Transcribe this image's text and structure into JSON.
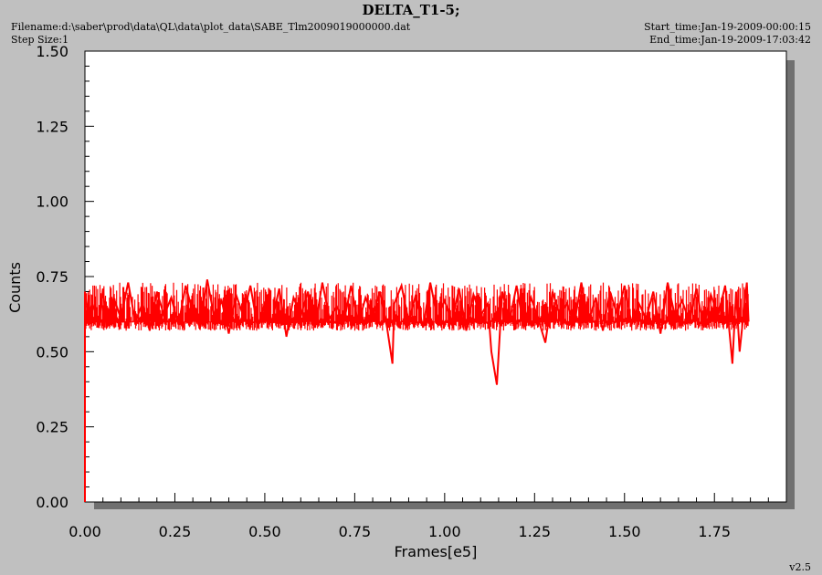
{
  "header": {
    "title": "DELTA_T1-5;",
    "filename": "Filename:d:\\saber\\prod\\data\\QL\\data\\plot_data\\SABE_Tlm2009019000000.dat",
    "step_size": "Step Size:1",
    "start_time": "Start_time:Jan-19-2009-00:00:15",
    "end_time": "End_time:Jan-19-2009-17:03:42",
    "version": "v2.5"
  },
  "colors": {
    "series": "#ff0000",
    "background": "#c0c0c0",
    "plot_bg": "#ffffff",
    "shadow": "#707070"
  },
  "chart_data": {
    "type": "line",
    "title": "DELTA_T1-5;",
    "xlabel": "Frames[e5]",
    "ylabel": "Counts",
    "xlim": [
      0.0,
      1.95
    ],
    "ylim": [
      0.0,
      1.5
    ],
    "xticks": [
      "0.00",
      "0.25",
      "0.50",
      "0.75",
      "1.00",
      "1.25",
      "1.50",
      "1.75"
    ],
    "yticks": [
      "0.00",
      "0.25",
      "0.50",
      "0.75",
      "1.00",
      "1.25",
      "1.50"
    ],
    "grid": false,
    "series": [
      {
        "color": "#ff0000",
        "x": [
          0.0,
          0.0,
          0.01,
          0.02,
          0.04,
          0.05,
          0.06,
          0.08,
          0.1,
          0.12,
          0.14,
          0.16,
          0.18,
          0.2,
          0.22,
          0.24,
          0.26,
          0.28,
          0.3,
          0.32,
          0.34,
          0.36,
          0.38,
          0.4,
          0.42,
          0.44,
          0.46,
          0.48,
          0.5,
          0.52,
          0.54,
          0.56,
          0.58,
          0.6,
          0.62,
          0.64,
          0.66,
          0.68,
          0.7,
          0.72,
          0.74,
          0.76,
          0.78,
          0.8,
          0.82,
          0.84,
          0.855,
          0.86,
          0.88,
          0.9,
          0.92,
          0.94,
          0.96,
          0.98,
          1.0,
          1.02,
          1.04,
          1.06,
          1.08,
          1.1,
          1.12,
          1.13,
          1.145,
          1.16,
          1.18,
          1.2,
          1.22,
          1.24,
          1.26,
          1.28,
          1.3,
          1.32,
          1.34,
          1.36,
          1.38,
          1.4,
          1.42,
          1.44,
          1.46,
          1.48,
          1.5,
          1.52,
          1.54,
          1.56,
          1.58,
          1.6,
          1.62,
          1.64,
          1.66,
          1.68,
          1.7,
          1.72,
          1.74,
          1.76,
          1.78,
          1.8,
          1.81,
          1.82,
          1.84,
          1.845
        ],
        "y": [
          0.0,
          0.7,
          0.62,
          0.66,
          0.6,
          0.71,
          0.58,
          0.68,
          0.61,
          0.73,
          0.6,
          0.66,
          0.57,
          0.7,
          0.62,
          0.68,
          0.59,
          0.72,
          0.63,
          0.58,
          0.74,
          0.61,
          0.67,
          0.56,
          0.69,
          0.62,
          0.72,
          0.58,
          0.66,
          0.6,
          0.71,
          0.55,
          0.68,
          0.62,
          0.7,
          0.58,
          0.73,
          0.61,
          0.65,
          0.6,
          0.72,
          0.59,
          0.68,
          0.62,
          0.7,
          0.58,
          0.46,
          0.66,
          0.72,
          0.6,
          0.69,
          0.58,
          0.73,
          0.61,
          0.67,
          0.6,
          0.71,
          0.57,
          0.69,
          0.62,
          0.66,
          0.5,
          0.39,
          0.7,
          0.6,
          0.72,
          0.58,
          0.68,
          0.61,
          0.53,
          0.7,
          0.62,
          0.66,
          0.59,
          0.73,
          0.6,
          0.68,
          0.57,
          0.7,
          0.62,
          0.72,
          0.59,
          0.66,
          0.61,
          0.7,
          0.56,
          0.73,
          0.62,
          0.67,
          0.6,
          0.71,
          0.58,
          0.69,
          0.62,
          0.72,
          0.46,
          0.7,
          0.5,
          0.73,
          0.6
        ]
      }
    ]
  }
}
